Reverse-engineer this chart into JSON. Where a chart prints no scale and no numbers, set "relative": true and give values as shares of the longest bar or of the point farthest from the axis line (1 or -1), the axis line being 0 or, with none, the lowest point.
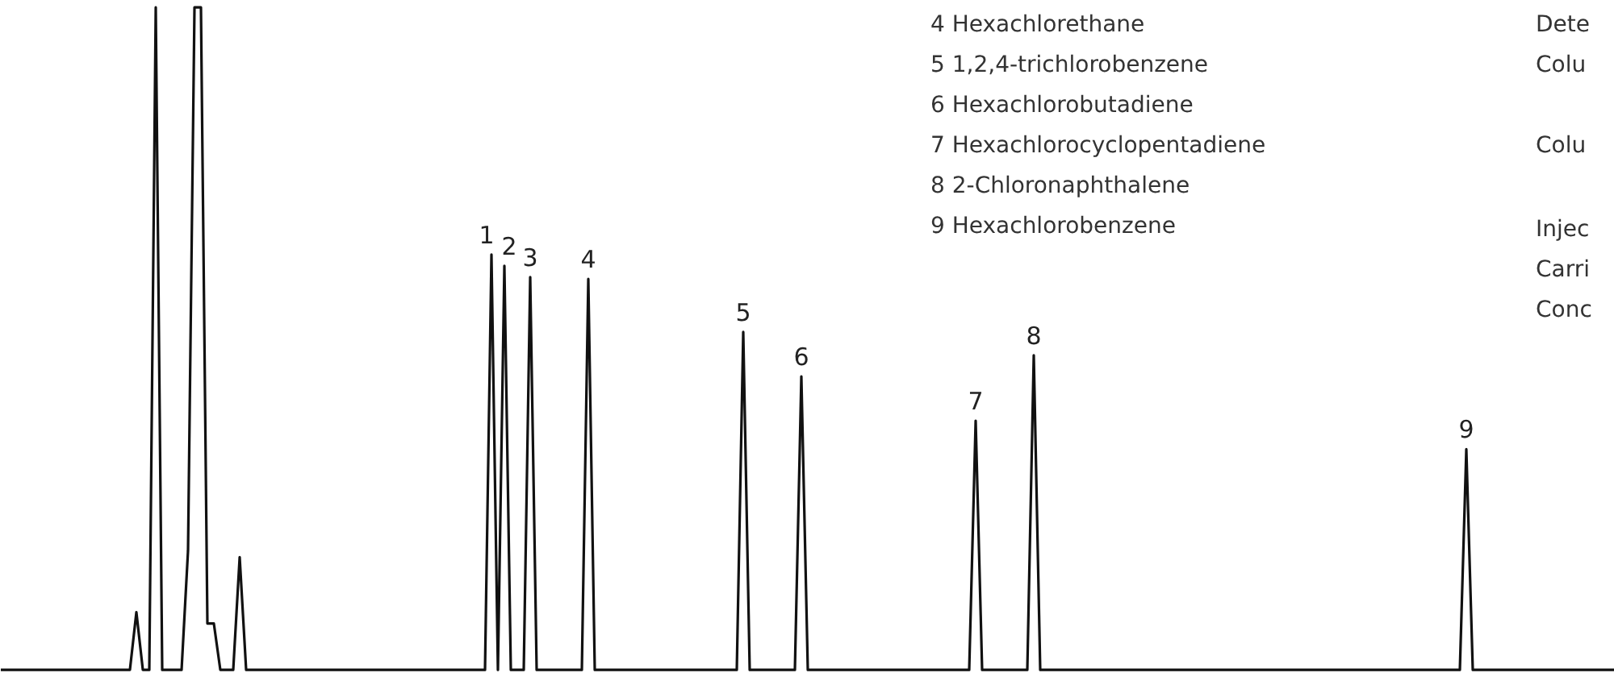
{
  "chart_data": {
    "type": "line",
    "relative": true,
    "grid": false,
    "marker": "none",
    "line_style": "solid",
    "categories": [
      null,
      null,
      null,
      null,
      null,
      null,
      null,
      null,
      null,
      null,
      null,
      null,
      null,
      null,
      null,
      null,
      null,
      null,
      null,
      null,
      null,
      null,
      null,
      null,
      null,
      null,
      null,
      null,
      null,
      null,
      null,
      null,
      null,
      null,
      null,
      null,
      null,
      null,
      null,
      null,
      null,
      null,
      null,
      null,
      null,
      null,
      null,
      null,
      null,
      null,
      null,
      null,
      null,
      null,
      null,
      null,
      null,
      null,
      null,
      null,
      null,
      null,
      null,
      null,
      null,
      null,
      null,
      null,
      null,
      null,
      null,
      null,
      null,
      null,
      null,
      null,
      null,
      null,
      null,
      null,
      null,
      null,
      null,
      null,
      null,
      null,
      null,
      null,
      null,
      null,
      null,
      null,
      null,
      null,
      null,
      null,
      null,
      null,
      null,
      null,
      null,
      null,
      null,
      null,
      null,
      null,
      null,
      null,
      null,
      null,
      null,
      null,
      null,
      null,
      null,
      null,
      null,
      null,
      null,
      null,
      null,
      null,
      null,
      null,
      null,
      null,
      null,
      null,
      null,
      null,
      null,
      null,
      null,
      null,
      null,
      null,
      null,
      null,
      null,
      null,
      null,
      null,
      null,
      null,
      null,
      null,
      null,
      null,
      null,
      null,
      null,
      null,
      null,
      null,
      null,
      null,
      null,
      null,
      null,
      null,
      null,
      null,
      null,
      null,
      null,
      null,
      null,
      null,
      null,
      null,
      null,
      null,
      null,
      null,
      null,
      null,
      null,
      null,
      null,
      null,
      null,
      null,
      null,
      null,
      null,
      null,
      null,
      null,
      null,
      null,
      null,
      null,
      null,
      null,
      null,
      null,
      null,
      null,
      null,
      null,
      null,
      null,
      null,
      null,
      null,
      null,
      null,
      null,
      null,
      null,
      null,
      null,
      null,
      null,
      null,
      null,
      null,
      null,
      null,
      null,
      null,
      null,
      null,
      null,
      null,
      null,
      null,
      null,
      null,
      null,
      null,
      null,
      null,
      null,
      null,
      null,
      null,
      null,
      null,
      null,
      null,
      null,
      null,
      null,
      null,
      null,
      null,
      null,
      null,
      null,
      null
    ],
    "series": [
      {
        "color": "#111111",
        "values": [
          0,
          0,
          0,
          0,
          0,
          0,
          0,
          0,
          0,
          0,
          0,
          0,
          0,
          0,
          0,
          0,
          0,
          0,
          0,
          0,
          0,
          0.087,
          0,
          0,
          1.0,
          0,
          0,
          0,
          0,
          0.18,
          1.0,
          1.0,
          0.07,
          0.07,
          0,
          0,
          0,
          0.17,
          0,
          0,
          0,
          0,
          0,
          0,
          0,
          0,
          0,
          0,
          0,
          0,
          0,
          0,
          0,
          0,
          0,
          0,
          0,
          0,
          0,
          0,
          0,
          0,
          0,
          0,
          0,
          0,
          0,
          0,
          0,
          0,
          0,
          0,
          0,
          0,
          0,
          0,
          0.627,
          0,
          0.61,
          0,
          0,
          0,
          0.593,
          0,
          0,
          0,
          0,
          0,
          0,
          0,
          0,
          0.59,
          0,
          0,
          0,
          0,
          0,
          0,
          0,
          0,
          0,
          0,
          0,
          0,
          0,
          0,
          0,
          0,
          0,
          0,
          0,
          0,
          0,
          0,
          0,
          0.51,
          0,
          0,
          0,
          0,
          0,
          0,
          0,
          0,
          0.443,
          0,
          0,
          0,
          0,
          0,
          0,
          0,
          0,
          0,
          0,
          0,
          0,
          0,
          0,
          0,
          0,
          0,
          0,
          0,
          0,
          0,
          0,
          0,
          0,
          0,
          0,
          0.376,
          0,
          0,
          0,
          0,
          0,
          0,
          0,
          0,
          0.475,
          0,
          0,
          0,
          0,
          0,
          0,
          0,
          0,
          0,
          0,
          0,
          0,
          0,
          0,
          0,
          0,
          0,
          0,
          0,
          0,
          0,
          0,
          0,
          0,
          0,
          0,
          0,
          0,
          0,
          0,
          0,
          0,
          0,
          0,
          0,
          0,
          0,
          0,
          0,
          0,
          0,
          0,
          0,
          0,
          0,
          0,
          0,
          0,
          0,
          0,
          0,
          0,
          0,
          0,
          0,
          0,
          0,
          0,
          0,
          0,
          0,
          0,
          0,
          0,
          0,
          0,
          0.333,
          0,
          0,
          0,
          0,
          0,
          0,
          0,
          0,
          0,
          0,
          0,
          0,
          0,
          0,
          0,
          0,
          0,
          0,
          0,
          0,
          0,
          0,
          0
        ]
      }
    ],
    "annotations": [
      {
        "text": "1",
        "y": 0.627
      },
      {
        "text": "2",
        "y": 0.61
      },
      {
        "text": "3",
        "y": 0.593
      },
      {
        "text": "4",
        "y": 0.59
      },
      {
        "text": "5",
        "y": 0.51
      },
      {
        "text": "6",
        "y": 0.443
      },
      {
        "text": "7",
        "y": 0.376
      },
      {
        "text": "8",
        "y": 0.475
      },
      {
        "text": "9",
        "y": 0.333
      },
      "4 Hexachlorethane",
      "5 1,2,4-trichlorobenzene",
      "6 Hexachlorobutadiene",
      "7 Hexachlorocyclopentadiene",
      "8 2-Chloronaphthalene",
      "9 Hexachlorobenzene",
      "Dete",
      "Colu",
      "Colu",
      "Injec",
      "Carri",
      "Conc"
    ]
  }
}
